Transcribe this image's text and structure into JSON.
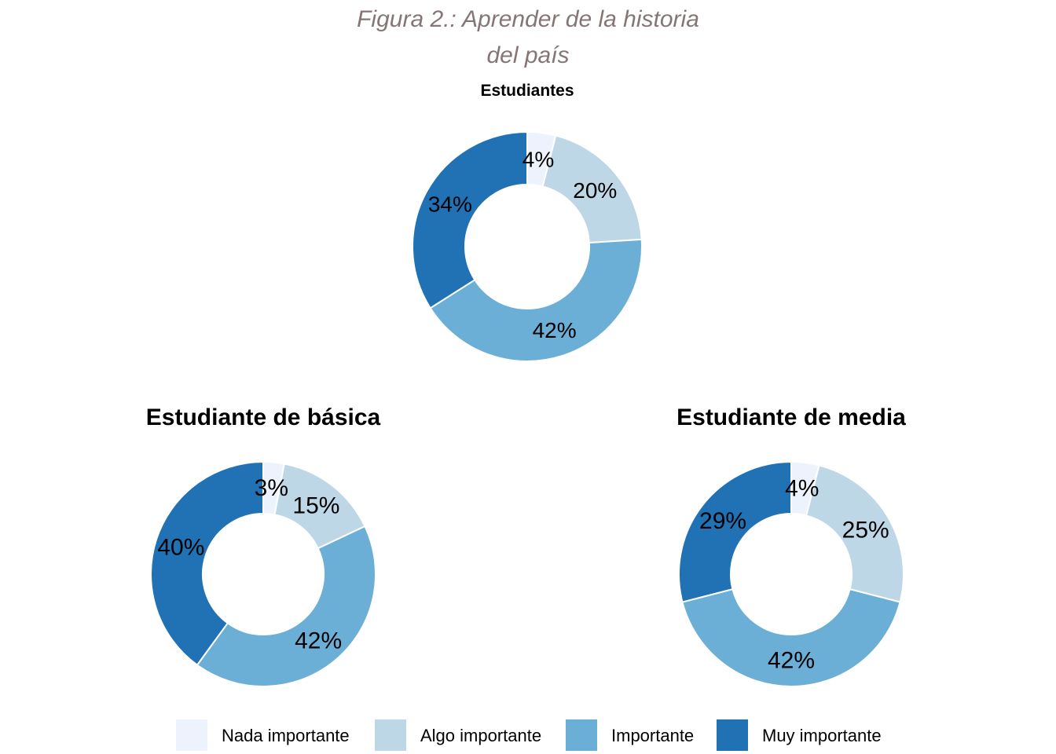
{
  "figure": {
    "title_line1": "Figura 2.: Aprender de la historia",
    "title_line2": "del país"
  },
  "colors": {
    "Nada importante": "#EDF3FC",
    "Algo importante": "#BDD7E7",
    "Importante": "#6BAED6",
    "Muy importante": "#2171B5"
  },
  "legend": [
    "Nada importante",
    "Algo importante",
    "Importante",
    "Muy importante"
  ],
  "chart_data": [
    {
      "type": "pie",
      "variant": "donut",
      "title": "Estudiantes",
      "categories": [
        "Nada importante",
        "Algo importante",
        "Importante",
        "Muy importante"
      ],
      "values": [
        4,
        20,
        42,
        34
      ],
      "labels": [
        "4%",
        "20%",
        "42%",
        "34%"
      ]
    },
    {
      "type": "pie",
      "variant": "donut",
      "title": "Estudiante de básica",
      "categories": [
        "Nada importante",
        "Algo importante",
        "Importante",
        "Muy importante"
      ],
      "values": [
        3,
        15,
        42,
        40
      ],
      "labels": [
        "3%",
        "15%",
        "42%",
        "40%"
      ]
    },
    {
      "type": "pie",
      "variant": "donut",
      "title": "Estudiante de media",
      "categories": [
        "Nada importante",
        "Algo importante",
        "Importante",
        "Muy importante"
      ],
      "values": [
        4,
        25,
        42,
        29
      ],
      "labels": [
        "4%",
        "25%",
        "42%",
        "29%"
      ]
    }
  ]
}
